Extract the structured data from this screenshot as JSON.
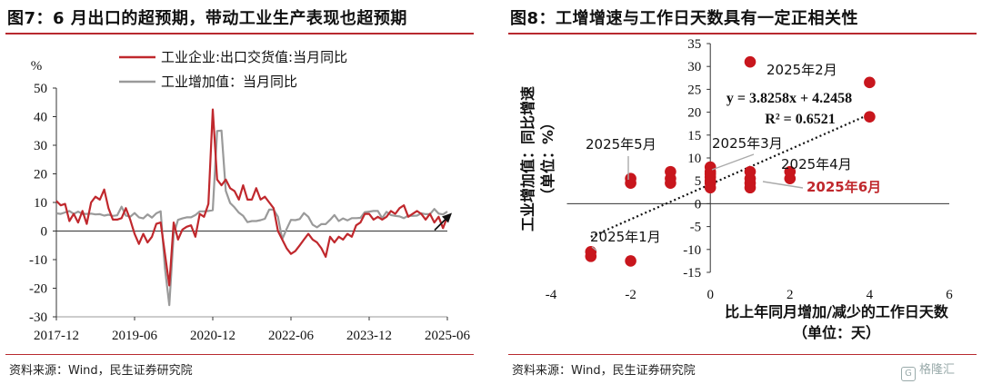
{
  "left": {
    "title": "图7：6 月出口的超预期，带动工业生产表现也超预期",
    "source": "资料来源：Wind，民生证券研究院"
  },
  "right": {
    "title": "图8：工增增速与工作日天数具有一定正相关性",
    "source": "资料来源：Wind，民生证券研究院"
  },
  "watermark": "格隆汇",
  "colors": {
    "accent": "#b8292f",
    "series_red": "#c0282d",
    "series_gray": "#9a9a9a",
    "point_red": "#c8161d"
  },
  "chart_data": [
    {
      "type": "line",
      "title": "",
      "ylabel": "%",
      "ylim": [
        -30,
        50
      ],
      "yticks": [
        -30,
        -20,
        -10,
        0,
        10,
        20,
        30,
        40,
        50
      ],
      "xticks": [
        "2017-12",
        "2019-06",
        "2020-12",
        "2022-06",
        "2023-12",
        "2025-06"
      ],
      "legend_position": "top-center",
      "annotations": [
        "arrow-up"
      ],
      "x": [
        "2017-12",
        "2018-01",
        "2018-02",
        "2018-03",
        "2018-04",
        "2018-05",
        "2018-06",
        "2018-07",
        "2018-08",
        "2018-09",
        "2018-10",
        "2018-11",
        "2018-12",
        "2019-01",
        "2019-02",
        "2019-03",
        "2019-04",
        "2019-05",
        "2019-06",
        "2019-07",
        "2019-08",
        "2019-09",
        "2019-10",
        "2019-11",
        "2019-12",
        "2020-01",
        "2020-02",
        "2020-03",
        "2020-04",
        "2020-05",
        "2020-06",
        "2020-07",
        "2020-08",
        "2020-09",
        "2020-10",
        "2020-11",
        "2020-12",
        "2021-01",
        "2021-02",
        "2021-03",
        "2021-04",
        "2021-05",
        "2021-06",
        "2021-07",
        "2021-08",
        "2021-09",
        "2021-10",
        "2021-11",
        "2021-12",
        "2022-01",
        "2022-02",
        "2022-03",
        "2022-04",
        "2022-05",
        "2022-06",
        "2022-07",
        "2022-08",
        "2022-09",
        "2022-10",
        "2022-11",
        "2022-12",
        "2023-01",
        "2023-02",
        "2023-03",
        "2023-04",
        "2023-05",
        "2023-06",
        "2023-07",
        "2023-08",
        "2023-09",
        "2023-10",
        "2023-11",
        "2023-12",
        "2024-01",
        "2024-02",
        "2024-03",
        "2024-04",
        "2024-05",
        "2024-06",
        "2024-07",
        "2024-08",
        "2024-09",
        "2024-10",
        "2024-11",
        "2024-12",
        "2025-01",
        "2025-02",
        "2025-03",
        "2025-04",
        "2025-05",
        "2025-06"
      ],
      "series": [
        {
          "name": "工业企业:出口交货值:当月同比",
          "values": [
            10.5,
            9,
            9.5,
            3.5,
            6,
            3,
            7,
            2.5,
            10,
            12,
            11,
            14.5,
            8,
            4,
            4,
            4.5,
            8,
            4,
            -1,
            -4.5,
            -1,
            -4,
            -2,
            2.5,
            3,
            -8,
            -19,
            3,
            -3,
            0.5,
            1.5,
            2,
            -2,
            6,
            5,
            9.5,
            42.5,
            18,
            16,
            18,
            15,
            14,
            11,
            16,
            11,
            11,
            15,
            11,
            12,
            10,
            8,
            0,
            -3,
            -6,
            -8,
            -7,
            -5,
            -3,
            -1,
            -3,
            -4,
            -6,
            -9,
            -2,
            -4,
            -2,
            -3,
            -1,
            -2,
            2,
            3,
            6,
            6,
            4,
            5,
            4,
            5,
            7,
            6,
            8,
            9,
            5,
            6,
            7,
            6,
            4,
            6,
            3,
            5,
            1,
            5
          ]
        },
        {
          "name": "工业增加值：当月同比",
          "values": [
            6.2,
            6,
            6.5,
            7,
            6,
            6.8,
            6,
            6,
            6.1,
            5.8,
            5.9,
            5.4,
            5.7,
            5.3,
            5.5,
            8.5,
            5.4,
            5,
            6.3,
            4.8,
            4.4,
            5.8,
            4.7,
            6.2,
            6.9,
            -13,
            -25.9,
            -1.1,
            3.9,
            4.4,
            4.8,
            4.8,
            5.6,
            6.9,
            6.9,
            7,
            7.3,
            35,
            35.1,
            14.1,
            9.8,
            8.3,
            6.4,
            5.3,
            3.1,
            3.5,
            3.5,
            3.8,
            4.3,
            7.5,
            7.5,
            5,
            -2.9,
            0.7,
            3.9,
            3.8,
            4.2,
            6.3,
            5,
            2.2,
            1.3,
            2.4,
            2.4,
            3.9,
            5.6,
            3.5,
            4.4,
            3.7,
            4.5,
            4.5,
            4.6,
            6.6,
            6.8,
            7,
            7,
            4.5,
            6.7,
            5.6,
            5.3,
            5.1,
            4.5,
            5.4,
            5.3,
            5.4,
            6.2,
            5.9,
            5.9,
            7.7,
            6.1,
            5.8,
            6.8
          ]
        }
      ]
    },
    {
      "type": "scatter",
      "title": "",
      "xlabel": "比上年同月增加/减少的工作日天数",
      "xlabel_unit": "（单位：天）",
      "ylabel": "工业增加值：同比增速",
      "ylabel_unit": "（单位：%）",
      "xlim": [
        -4,
        6
      ],
      "ylim": [
        -15,
        35
      ],
      "xticks": [
        -4,
        -2,
        0,
        2,
        4,
        6
      ],
      "yticks": [
        -15,
        -10,
        -5,
        0,
        5,
        10,
        15,
        20,
        25,
        30,
        35
      ],
      "points": [
        {
          "x": -3,
          "y": -10.5
        },
        {
          "x": -3,
          "y": -11.5
        },
        {
          "x": -2,
          "y": -12.5
        },
        {
          "x": -2,
          "y": 5.5
        },
        {
          "x": -2,
          "y": 4.5
        },
        {
          "x": -1,
          "y": 7
        },
        {
          "x": -1,
          "y": 5.5
        },
        {
          "x": -1,
          "y": 4.5
        },
        {
          "x": 0,
          "y": 8
        },
        {
          "x": 0,
          "y": 7
        },
        {
          "x": 0,
          "y": 6.5
        },
        {
          "x": 0,
          "y": 5.8
        },
        {
          "x": 0,
          "y": 5
        },
        {
          "x": 0,
          "y": 4.5
        },
        {
          "x": 0,
          "y": 3.5
        },
        {
          "x": 1,
          "y": 31
        },
        {
          "x": 1,
          "y": 7
        },
        {
          "x": 1,
          "y": 5.5
        },
        {
          "x": 1,
          "y": 4.5
        },
        {
          "x": 1,
          "y": 3.5
        },
        {
          "x": 2,
          "y": 7
        },
        {
          "x": 2,
          "y": 5.5
        },
        {
          "x": 4,
          "y": 26.5
        },
        {
          "x": 4,
          "y": 19
        }
      ],
      "trendline": {
        "slope": 3.8258,
        "intercept": 4.2458,
        "x_range": [
          -3,
          4
        ]
      },
      "equation": "y = 3.8258x + 4.2458",
      "r_squared": "R² = 0.6521",
      "annotations": [
        {
          "text": "2025年2月",
          "x": 1,
          "y": 31
        },
        {
          "text": "2025年5月",
          "x": -2,
          "y": 5.5
        },
        {
          "text": "2025年3月",
          "x": 0,
          "y": 8
        },
        {
          "text": "2025年4月",
          "x": 2,
          "y": 7
        },
        {
          "text": "2025年6月",
          "x": 2,
          "y": 5.5,
          "highlight": true
        },
        {
          "text": "2025年1月",
          "x": -3,
          "y": -10.5
        }
      ]
    }
  ]
}
